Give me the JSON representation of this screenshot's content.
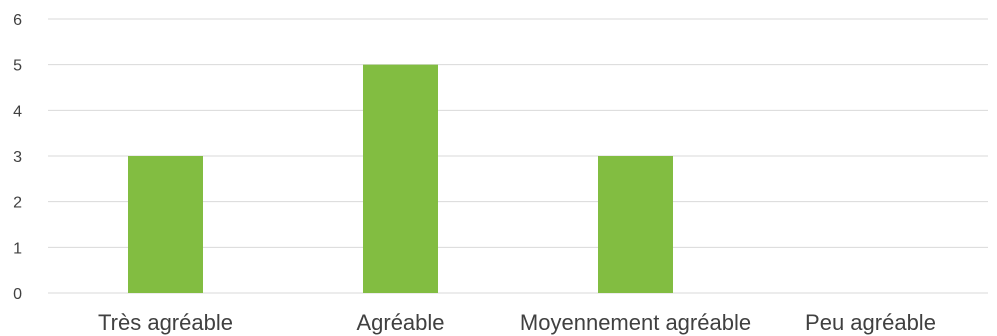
{
  "chart_data": {
    "type": "bar",
    "categories": [
      "Très agréable",
      "Agréable",
      "Moyennement agréable",
      "Peu agréable"
    ],
    "values": [
      3,
      5,
      3,
      0
    ],
    "ylim": [
      0,
      6
    ],
    "yticks": [
      "0",
      "1",
      "2",
      "3",
      "4",
      "5",
      "6"
    ],
    "grid": true,
    "legend": "none",
    "colors": {
      "bar": "#82BD41",
      "grid": "#D9D9D9",
      "text": "#404040"
    }
  }
}
